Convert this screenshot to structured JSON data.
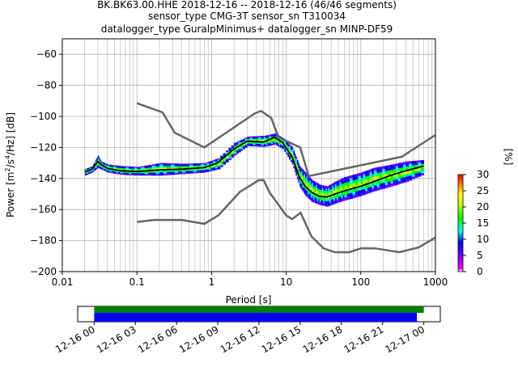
{
  "chart_data": [
    {
      "type": "heatmap",
      "title_lines": [
        "BK.BK63.00.HHE   2018-12-16 -- 2018-12-16  (46/46 segments)",
        "sensor_type CMG-3T sensor_sn T310034",
        "datalogger_type GuralpMinimus+ datalogger_sn MINP-DF59"
      ],
      "xlabel": "Period [s]",
      "ylabel_parts": [
        "Power [m",
        "2",
        "/s",
        "4",
        "/Hz] [dB]"
      ],
      "xscale": "log",
      "xlim": [
        0.01,
        1000
      ],
      "ylim": [
        -200,
        -50
      ],
      "xtick_labels": [
        "0.01",
        "0.1",
        "1",
        "10",
        "100",
        "1000"
      ],
      "xticks": [
        0.01,
        0.1,
        1,
        10,
        100,
        1000
      ],
      "yticks": [
        -60,
        -80,
        -100,
        -120,
        -140,
        -160,
        -180,
        -200
      ],
      "grid": true,
      "colorbar": {
        "label": "[%]",
        "range": [
          0,
          30
        ],
        "ticks": [
          0,
          5,
          10,
          15,
          20,
          25,
          30
        ]
      },
      "noise_models": [
        {
          "name": "NHNM",
          "color": "#666666",
          "x": [
            0.1,
            0.22,
            0.32,
            0.8,
            3.8,
            4.6,
            6.3,
            7.9,
            15.4,
            20,
            354.8,
            1000
          ],
          "y": [
            -91.5,
            -97.4,
            -110.5,
            -120,
            -98,
            -96.5,
            -101,
            -113.5,
            -120,
            -138.5,
            -126,
            -112
          ]
        },
        {
          "name": "NLNM",
          "color": "#666666",
          "x": [
            0.1,
            0.17,
            0.4,
            0.8,
            1.24,
            2.4,
            4.3,
            5,
            6,
            10,
            12,
            15.6,
            21.9,
            31.6,
            45,
            70,
            101,
            154,
            328,
            600,
            1000
          ],
          "y": [
            -168,
            -166.7,
            -166.7,
            -169.2,
            -163.7,
            -148.6,
            -141.1,
            -141.1,
            -149,
            -163.8,
            -166.2,
            -162.1,
            -177.5,
            -185,
            -187.5,
            -187.5,
            -185,
            -185,
            -187.5,
            -184.4,
            -178
          ]
        }
      ],
      "median_curve": {
        "color": "#000000",
        "x": [
          0.02,
          0.025,
          0.03,
          0.033,
          0.04,
          0.06,
          0.1,
          0.2,
          0.4,
          0.8,
          1.2,
          2,
          3,
          5,
          7,
          9,
          12,
          15,
          18,
          22,
          28,
          35,
          45,
          60,
          100,
          150,
          250,
          400,
          700
        ],
        "y": [
          -136,
          -134,
          -129,
          -131,
          -133.5,
          -135,
          -135.5,
          -134.5,
          -134,
          -133,
          -130,
          -121,
          -116,
          -116.5,
          -113.5,
          -117,
          -126,
          -139,
          -145,
          -149,
          -151.5,
          -152,
          -150,
          -148,
          -145,
          -142,
          -138,
          -135,
          -132
        ]
      },
      "pdf_bands": [
        {
          "x": [
            0.02,
            0.025,
            0.03,
            0.033,
            0.04,
            0.06,
            0.1,
            0.2,
            0.4,
            0.8,
            1.2,
            2,
            3,
            5,
            7,
            9,
            12,
            15,
            18,
            22,
            28,
            35,
            45,
            60,
            100,
            150,
            250,
            400,
            700
          ],
          "upper": [
            -134,
            -132,
            -125,
            -129,
            -131,
            -132,
            -132.5,
            -130,
            -130.5,
            -130,
            -127,
            -117,
            -113,
            -112.5,
            -111,
            -114,
            -120,
            -132,
            -136,
            -141,
            -144,
            -145,
            -142,
            -139,
            -136,
            -133,
            -131,
            -129,
            -128
          ],
          "lower": [
            -138,
            -136,
            -133,
            -134,
            -136,
            -137.5,
            -138,
            -138,
            -137,
            -136,
            -134,
            -125,
            -119,
            -119.5,
            -118,
            -121,
            -131,
            -145,
            -151,
            -155,
            -157,
            -158,
            -156,
            -154,
            -151,
            -148,
            -145,
            -142,
            -137
          ]
        }
      ],
      "availability": {
        "tick_labels": [
          "12-16 00",
          "12-16 03",
          "12-16 06",
          "12-16 09",
          "12-16 12",
          "12-16 15",
          "12-16 18",
          "12-16 21",
          "12-17 00"
        ],
        "tick_hours": [
          0,
          3,
          6,
          9,
          12,
          15,
          18,
          21,
          24
        ],
        "range_hours": [
          -1.2,
          25.2
        ],
        "bars": [
          {
            "color": "#008000",
            "start_hour": 0,
            "end_hour": 24
          },
          {
            "color": "#0000ff",
            "start_hour": 0,
            "end_hour": 23.5
          }
        ]
      }
    }
  ]
}
